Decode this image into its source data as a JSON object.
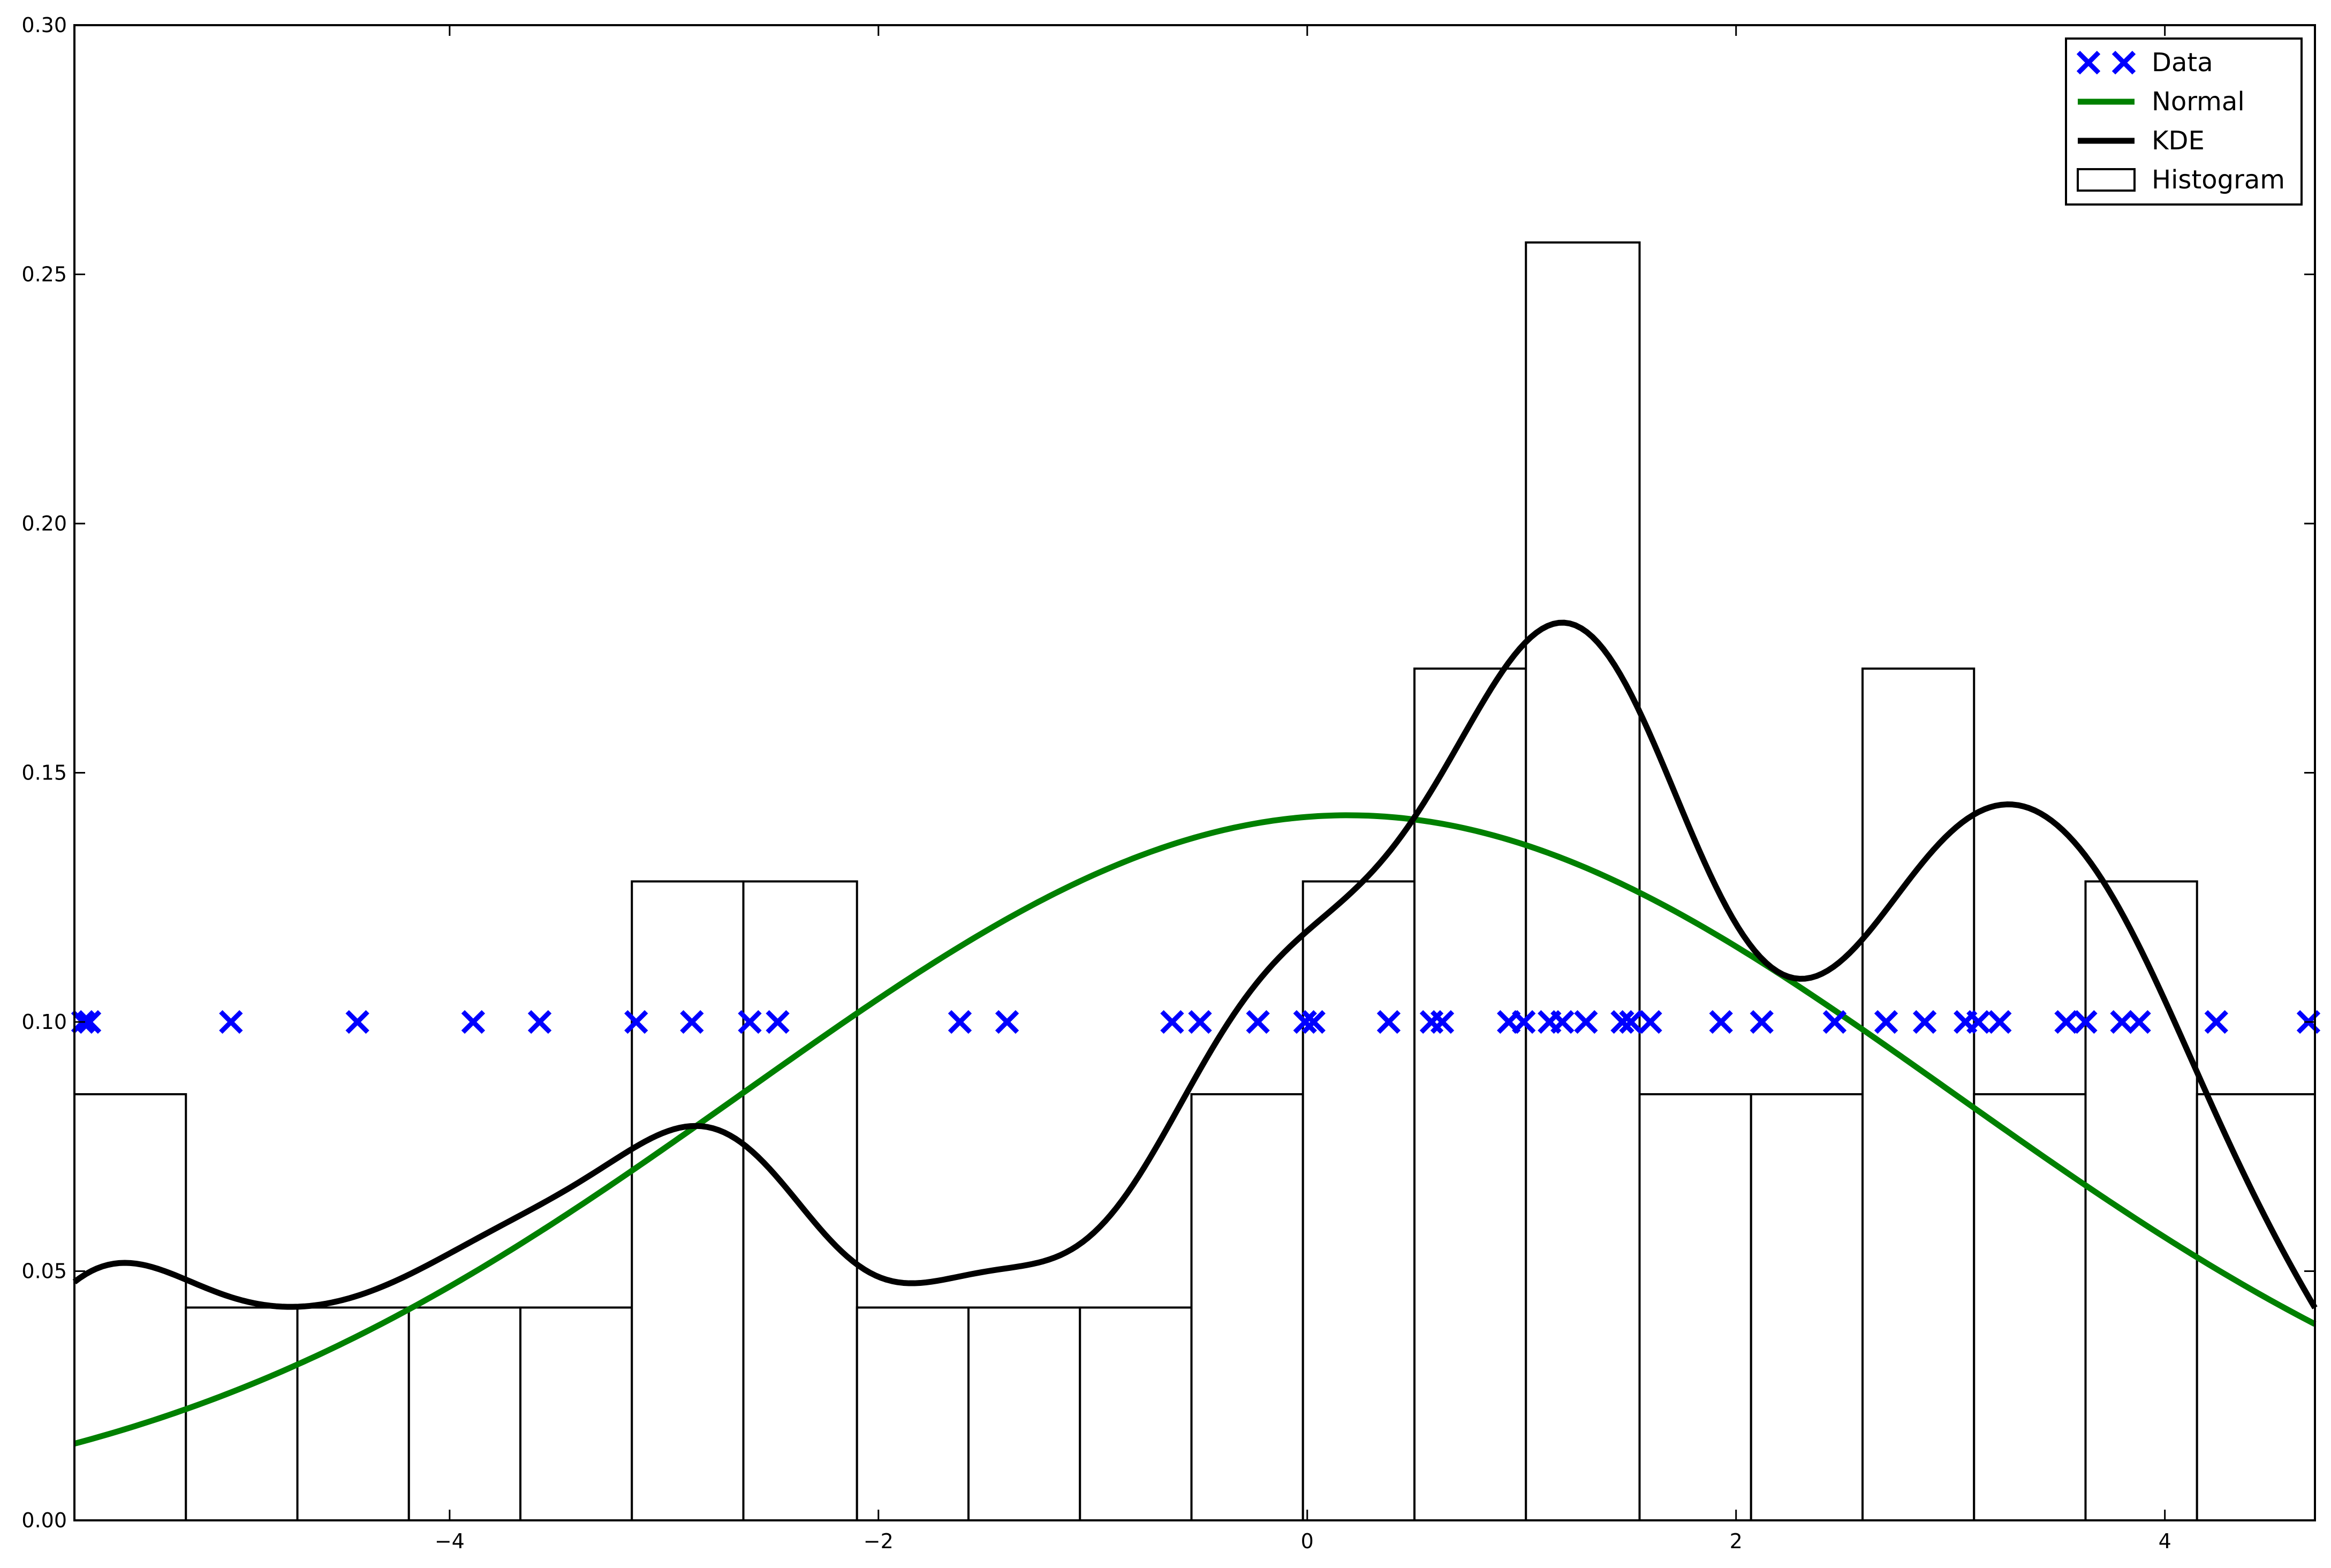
{
  "chart_data": {
    "type": "histogram-kde",
    "title": "",
    "xlabel": "",
    "ylabel": "",
    "xlim": [
      -5.75,
      4.7
    ],
    "ylim": [
      0,
      0.3
    ],
    "grid": false,
    "legend_position": "top-right",
    "xticks": [
      -4,
      -2,
      0,
      2,
      4
    ],
    "yticks": [
      0.0,
      0.05,
      0.1,
      0.15,
      0.2,
      0.25,
      0.3
    ],
    "xtick_labels": [
      "−4",
      "−2",
      "0",
      "2",
      "4"
    ],
    "ytick_labels": [
      "0.00",
      "0.05",
      "0.10",
      "0.15",
      "0.20",
      "0.25",
      "0.30"
    ],
    "histogram": {
      "name": "Histogram",
      "bins": [
        {
          "x0": -5.75,
          "x1": -5.23,
          "height": 0.0855
        },
        {
          "x0": -5.23,
          "x1": -4.71,
          "height": 0.0427
        },
        {
          "x0": -4.71,
          "x1": -4.19,
          "height": 0.0427
        },
        {
          "x0": -4.19,
          "x1": -3.67,
          "height": 0.0427
        },
        {
          "x0": -3.67,
          "x1": -3.15,
          "height": 0.0427
        },
        {
          "x0": -3.15,
          "x1": -2.63,
          "height": 0.1282
        },
        {
          "x0": -2.63,
          "x1": -2.1,
          "height": 0.1282
        },
        {
          "x0": -2.1,
          "x1": -1.58,
          "height": 0.0427
        },
        {
          "x0": -1.58,
          "x1": -1.06,
          "height": 0.0427
        },
        {
          "x0": -1.06,
          "x1": -0.54,
          "height": 0.0427
        },
        {
          "x0": -0.54,
          "x1": -0.02,
          "height": 0.0855
        },
        {
          "x0": -0.02,
          "x1": 0.5,
          "height": 0.1282
        },
        {
          "x0": 0.5,
          "x1": 1.02,
          "height": 0.1709
        },
        {
          "x0": 1.02,
          "x1": 1.55,
          "height": 0.2564
        },
        {
          "x0": 1.55,
          "x1": 2.07,
          "height": 0.0855
        },
        {
          "x0": 2.07,
          "x1": 2.59,
          "height": 0.0855
        },
        {
          "x0": 2.59,
          "x1": 3.11,
          "height": 0.1709
        },
        {
          "x0": 3.11,
          "x1": 3.63,
          "height": 0.0855
        },
        {
          "x0": 3.63,
          "x1": 4.15,
          "height": 0.1282
        },
        {
          "x0": 4.15,
          "x1": 4.7,
          "height": 0.0855
        }
      ],
      "edge_color": "#000000"
    },
    "normal": {
      "name": "Normal",
      "mean": 0.19,
      "std": 2.82,
      "color": "#008000"
    },
    "kde": {
      "name": "KDE",
      "color": "#000000",
      "bandwidth": 0.45,
      "note_bandwidth_source": "kde fitted to data points"
    },
    "data": {
      "name": "Data",
      "color": "#0000ff",
      "y": 0.1,
      "x": [
        -5.71,
        -5.68,
        -5.02,
        -4.43,
        -3.89,
        -3.58,
        -3.13,
        -2.87,
        -2.6,
        -2.47,
        -1.62,
        -1.4,
        -0.63,
        -0.5,
        -0.23,
        -0.01,
        0.03,
        0.38,
        0.58,
        0.63,
        0.94,
        1.01,
        1.13,
        1.19,
        1.3,
        1.47,
        1.51,
        1.6,
        1.93,
        2.12,
        2.46,
        2.7,
        2.88,
        3.07,
        3.13,
        3.23,
        3.54,
        3.63,
        3.8,
        3.88,
        4.24,
        4.67
      ]
    },
    "legend": [
      "Data",
      "Normal",
      "KDE",
      "Histogram"
    ]
  }
}
